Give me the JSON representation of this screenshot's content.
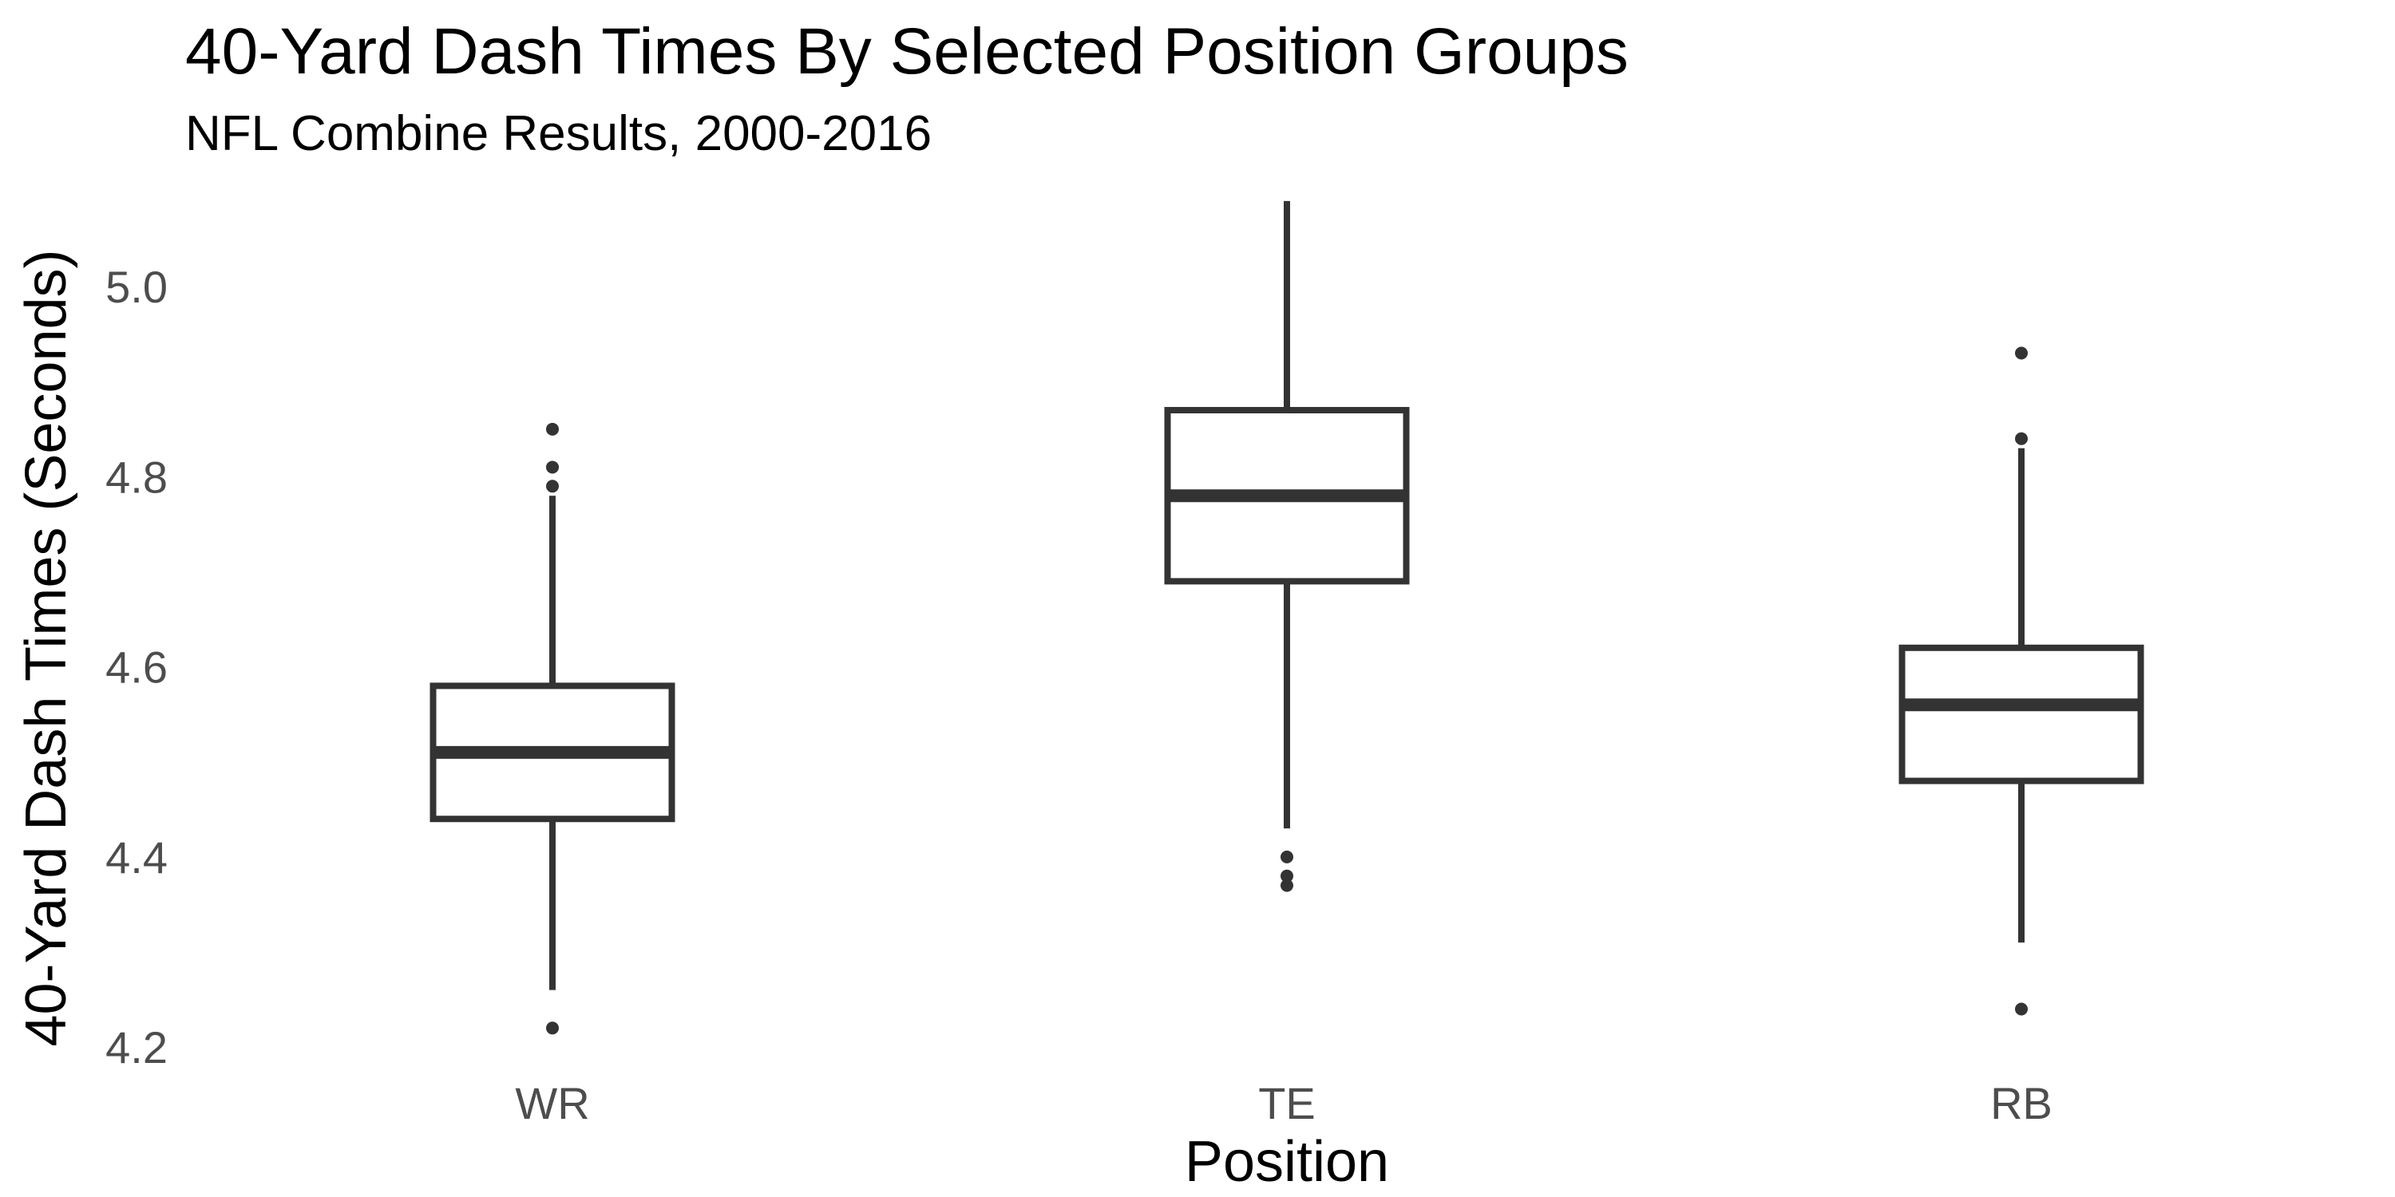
{
  "chart_data": {
    "type": "boxplot",
    "title": "40-Yard Dash Times By Selected Position Groups",
    "subtitle": "NFL Combine Results, 2000-2016",
    "xlabel": "Position",
    "ylabel": "40-Yard Dash Times (Seconds)",
    "categories": [
      "WR",
      "TE",
      "RB"
    ],
    "ylim": [
      4.185,
      5.1
    ],
    "yticks": [
      4.2,
      4.4,
      4.6,
      4.8,
      5.0
    ],
    "ytick_labels": [
      "4.2",
      "4.4",
      "4.6",
      "4.8",
      "5.0"
    ],
    "grid": false,
    "color": "#333333",
    "boxes": [
      {
        "category": "WR",
        "whisker_low": 4.26,
        "q1": 4.44,
        "median": 4.51,
        "q3": 4.58,
        "whisker_high": 4.78,
        "outliers": [
          4.22,
          4.79,
          4.81,
          4.85
        ]
      },
      {
        "category": "TE",
        "whisker_low": 4.43,
        "q1": 4.69,
        "median": 4.78,
        "q3": 4.87,
        "whisker_high": 5.09,
        "outliers": [
          4.37,
          4.38,
          4.4
        ]
      },
      {
        "category": "RB",
        "whisker_low": 4.31,
        "q1": 4.48,
        "median": 4.56,
        "q3": 4.62,
        "whisker_high": 4.83,
        "outliers": [
          4.24,
          4.84,
          4.93
        ]
      }
    ]
  }
}
